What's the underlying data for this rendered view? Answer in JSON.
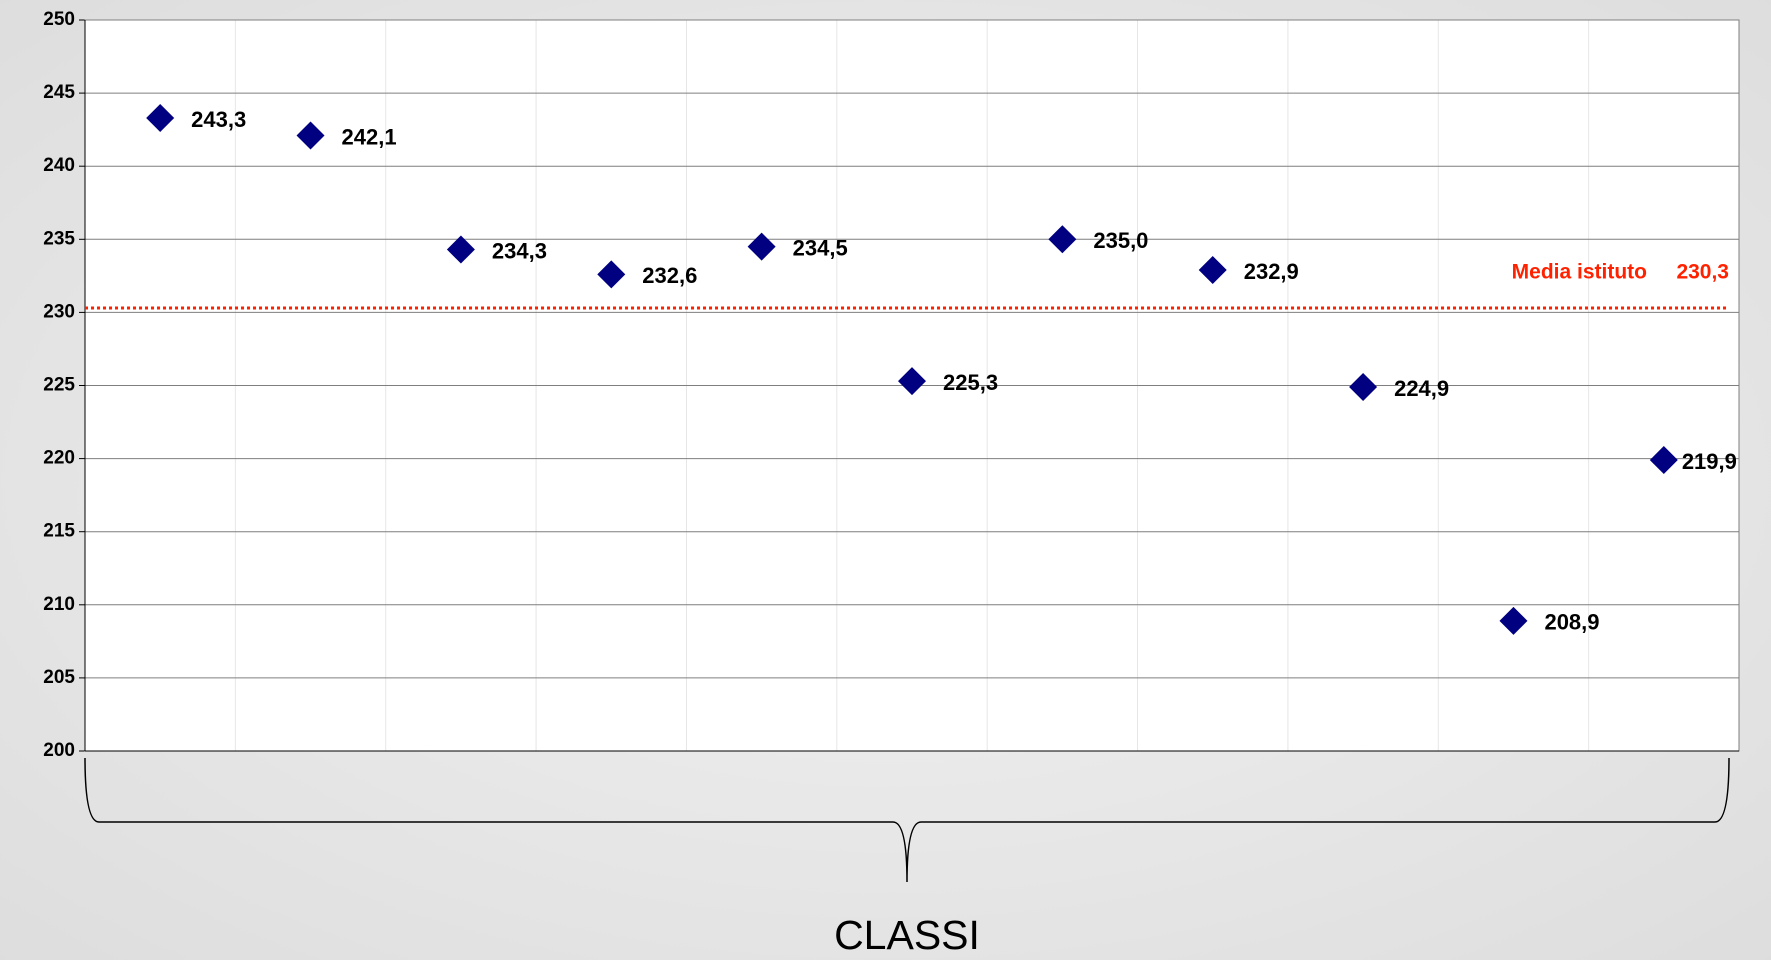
{
  "chart_data": {
    "type": "scatter",
    "categories": [
      null,
      null,
      null,
      null,
      null,
      null,
      null,
      null,
      null,
      null,
      null
    ],
    "values": [
      243.3,
      242.1,
      234.3,
      232.6,
      234.5,
      225.3,
      235.0,
      232.9,
      224.9,
      208.9,
      219.9
    ],
    "value_labels": [
      "243,3",
      "242,1",
      "234,3",
      "232,6",
      "234,5",
      "225,3",
      "235,0",
      "232,9",
      "224,9",
      "208,9",
      "219,9"
    ],
    "color": "#000080",
    "ylim": [
      200,
      250
    ],
    "yticks": [
      200,
      205,
      210,
      215,
      220,
      225,
      230,
      235,
      240,
      245,
      250
    ],
    "grid": true,
    "x_label": "CLASSI",
    "reference_line": {
      "label": "Media istituto",
      "value": 230.3,
      "value_label": "230,3",
      "color": "#ff2200"
    }
  }
}
